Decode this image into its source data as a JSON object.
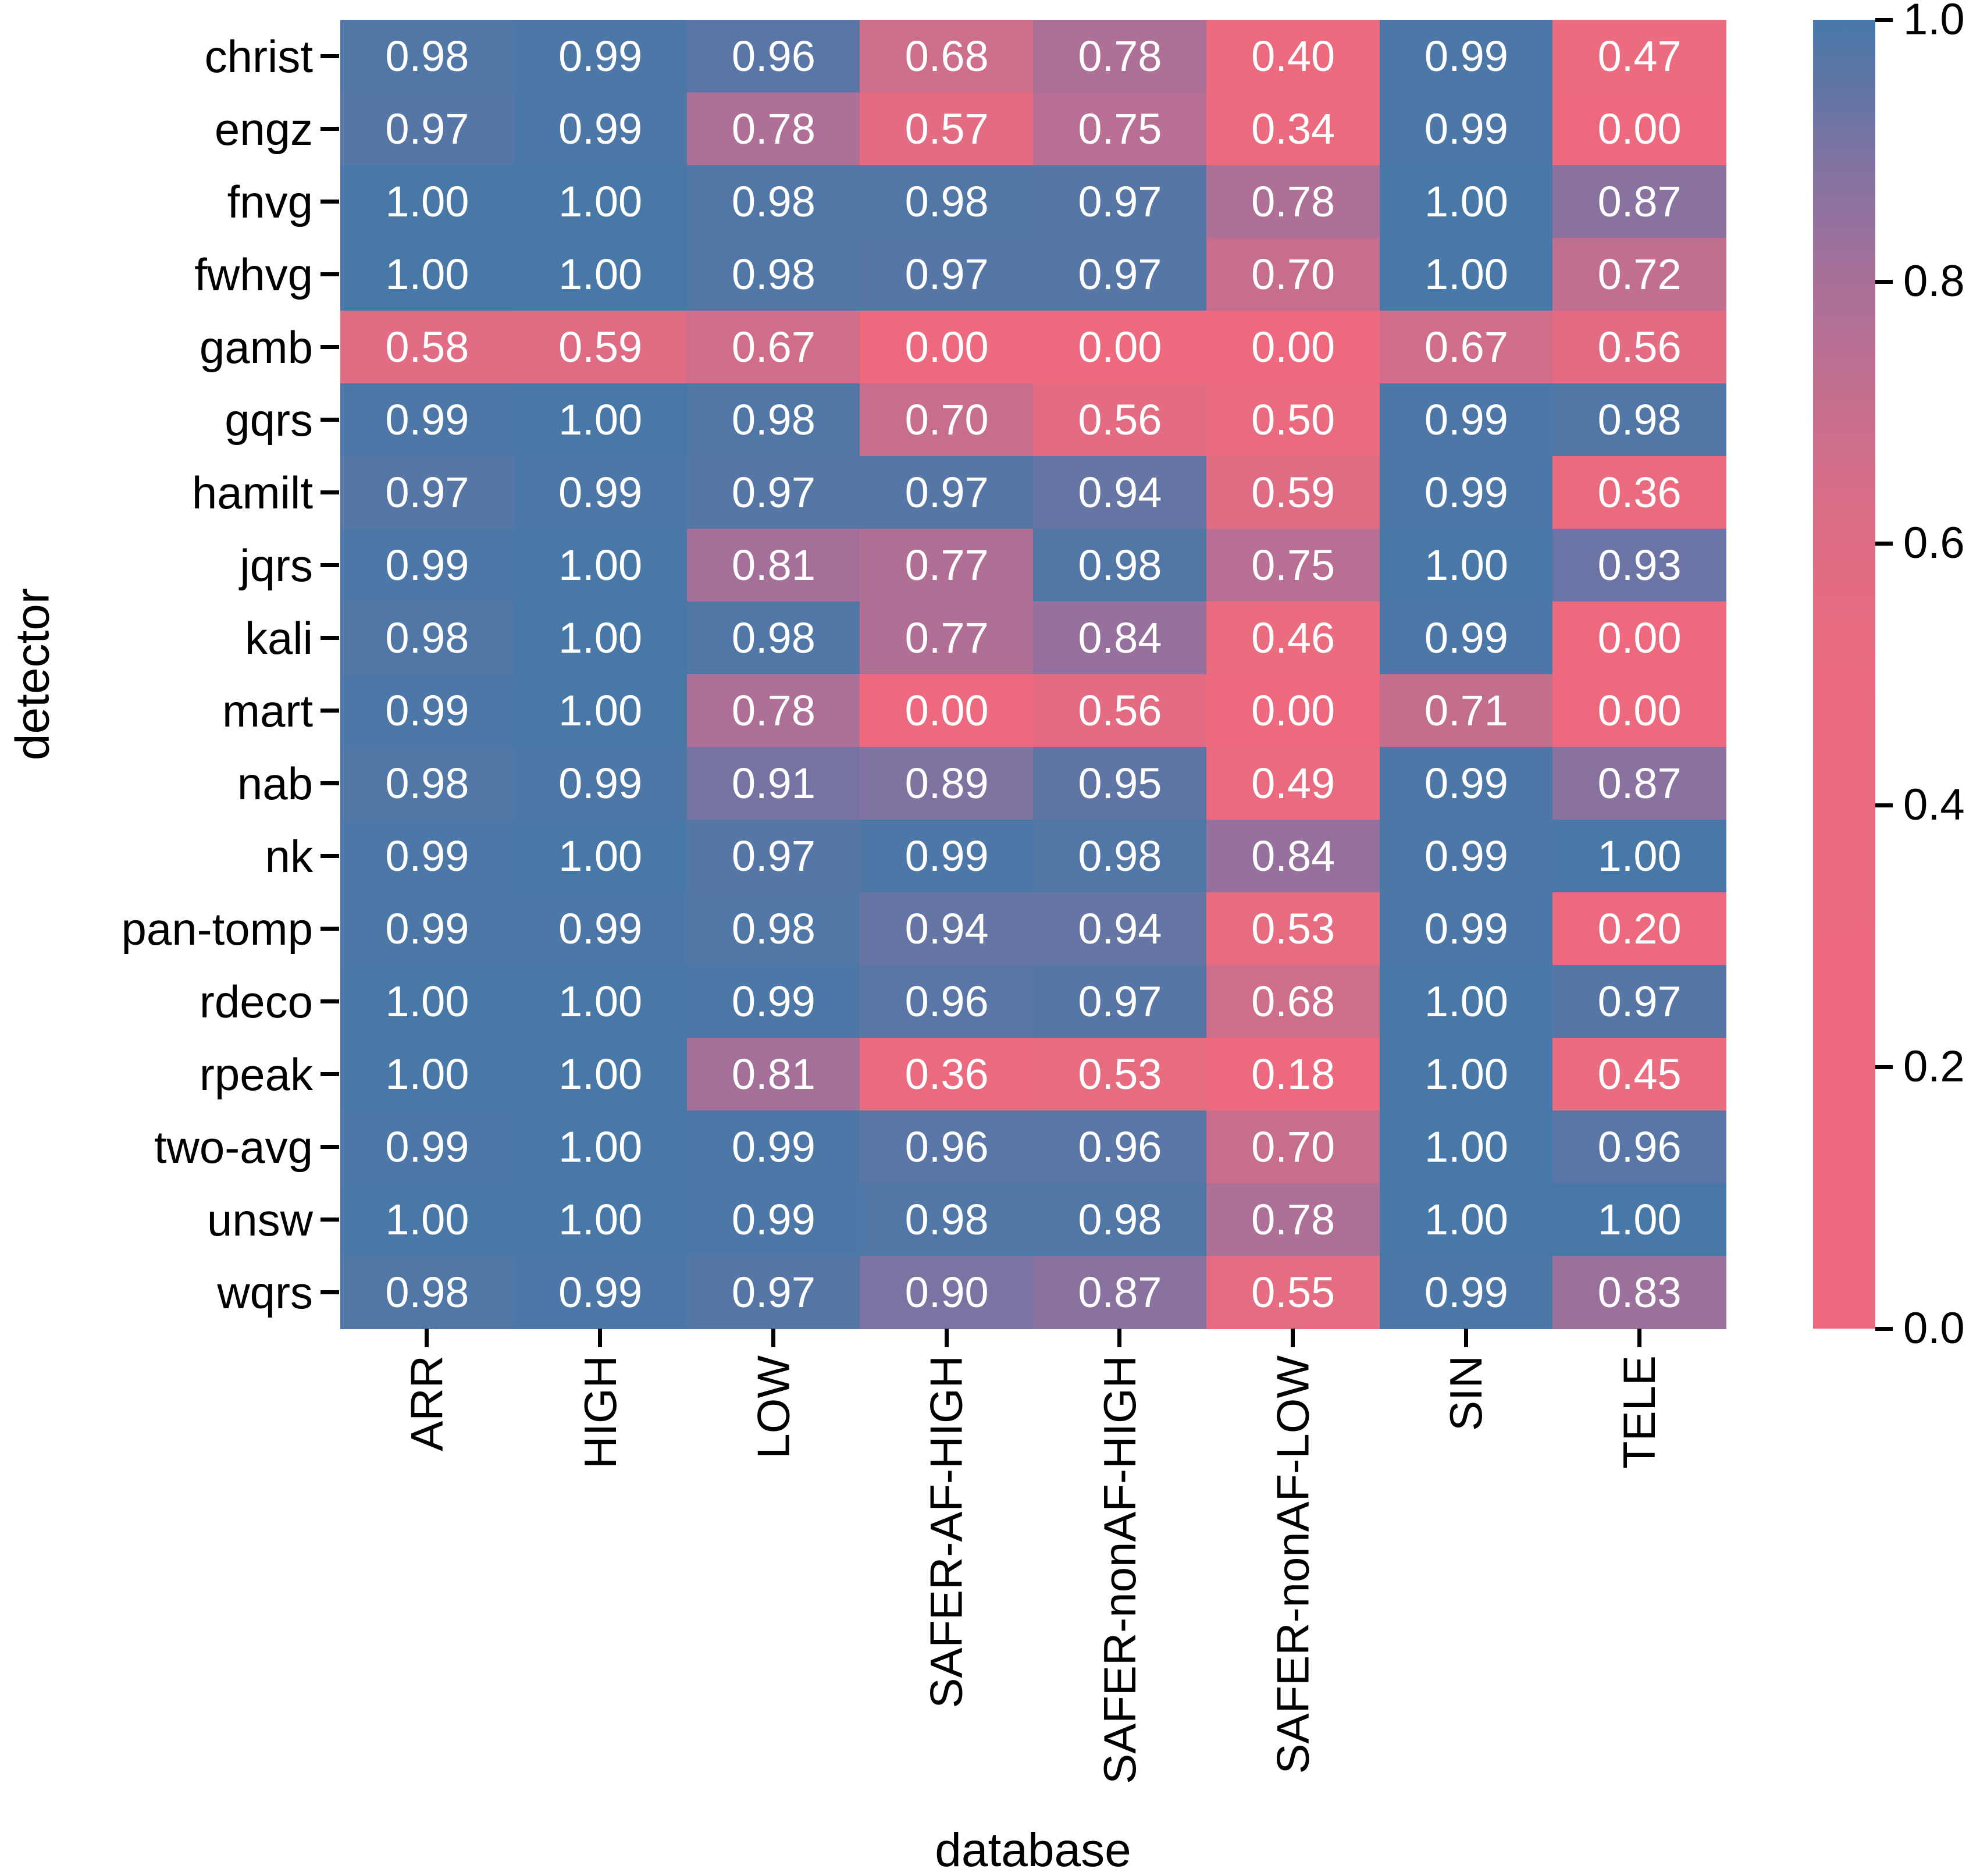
{
  "chart_data": {
    "type": "heatmap",
    "xlabel": "database",
    "ylabel": "detector",
    "rows": [
      "christ",
      "engz",
      "fnvg",
      "fwhvg",
      "gamb",
      "gqrs",
      "hamilt",
      "jqrs",
      "kali",
      "mart",
      "nab",
      "nk",
      "pan-tomp",
      "rdeco",
      "rpeak",
      "two-avg",
      "unsw",
      "wqrs"
    ],
    "columns": [
      "ARR",
      "HIGH",
      "LOW",
      "SAFER-AF-HIGH",
      "SAFER-nonAF-HIGH",
      "SAFER-nonAF-LOW",
      "SIN",
      "TELE"
    ],
    "values": [
      [
        0.98,
        0.99,
        0.96,
        0.68,
        0.78,
        0.4,
        0.99,
        0.47
      ],
      [
        0.97,
        0.99,
        0.78,
        0.57,
        0.75,
        0.34,
        0.99,
        0.0
      ],
      [
        1.0,
        1.0,
        0.98,
        0.98,
        0.97,
        0.78,
        1.0,
        0.87
      ],
      [
        1.0,
        1.0,
        0.98,
        0.97,
        0.97,
        0.7,
        1.0,
        0.72
      ],
      [
        0.58,
        0.59,
        0.67,
        0.0,
        0.0,
        0.0,
        0.67,
        0.56
      ],
      [
        0.99,
        1.0,
        0.98,
        0.7,
        0.56,
        0.5,
        0.99,
        0.98
      ],
      [
        0.97,
        0.99,
        0.97,
        0.97,
        0.94,
        0.59,
        0.99,
        0.36
      ],
      [
        0.99,
        1.0,
        0.81,
        0.77,
        0.98,
        0.75,
        1.0,
        0.93
      ],
      [
        0.98,
        1.0,
        0.98,
        0.77,
        0.84,
        0.46,
        0.99,
        0.0
      ],
      [
        0.99,
        1.0,
        0.78,
        0.0,
        0.56,
        0.0,
        0.71,
        0.0
      ],
      [
        0.98,
        0.99,
        0.91,
        0.89,
        0.95,
        0.49,
        0.99,
        0.87
      ],
      [
        0.99,
        1.0,
        0.97,
        0.99,
        0.98,
        0.84,
        0.99,
        1.0
      ],
      [
        0.99,
        0.99,
        0.98,
        0.94,
        0.94,
        0.53,
        0.99,
        0.2
      ],
      [
        1.0,
        1.0,
        0.99,
        0.96,
        0.97,
        0.68,
        1.0,
        0.97
      ],
      [
        1.0,
        1.0,
        0.81,
        0.36,
        0.53,
        0.18,
        1.0,
        0.45
      ],
      [
        0.99,
        1.0,
        0.99,
        0.96,
        0.96,
        0.7,
        1.0,
        0.96
      ],
      [
        1.0,
        1.0,
        0.99,
        0.98,
        0.98,
        0.78,
        1.0,
        1.0
      ],
      [
        0.98,
        0.99,
        0.97,
        0.9,
        0.87,
        0.55,
        0.99,
        0.83
      ]
    ],
    "value_format_decimals": 2,
    "annotation_color": "#ffffff",
    "vmin": 0.0,
    "vmax": 1.0,
    "grid": false,
    "legend_position": "right-colorbar",
    "colorbar_ticks": [
      "1.0",
      "0.8",
      "0.6",
      "0.4",
      "0.2",
      "0.0"
    ],
    "colorbar_tick_values": [
      1.0,
      0.8,
      0.6,
      0.4,
      0.2,
      0.0
    ],
    "colormap_stops": [
      {
        "v": 0.0,
        "color": "#ee697d"
      },
      {
        "v": 0.4,
        "color": "#ec6a7e"
      },
      {
        "v": 0.5,
        "color": "#ea6b7f"
      },
      {
        "v": 0.55,
        "color": "#e66c81"
      },
      {
        "v": 0.6,
        "color": "#de6c84"
      },
      {
        "v": 0.65,
        "color": "#d56d88"
      },
      {
        "v": 0.7,
        "color": "#c76e8d"
      },
      {
        "v": 0.75,
        "color": "#b86f93"
      },
      {
        "v": 0.8,
        "color": "#a87099"
      },
      {
        "v": 0.85,
        "color": "#92719e"
      },
      {
        "v": 0.9,
        "color": "#7c73a2"
      },
      {
        "v": 0.95,
        "color": "#5f75a5"
      },
      {
        "v": 1.0,
        "color": "#4878a8"
      }
    ],
    "tick_color": "#000000",
    "label_color": "#000000"
  }
}
